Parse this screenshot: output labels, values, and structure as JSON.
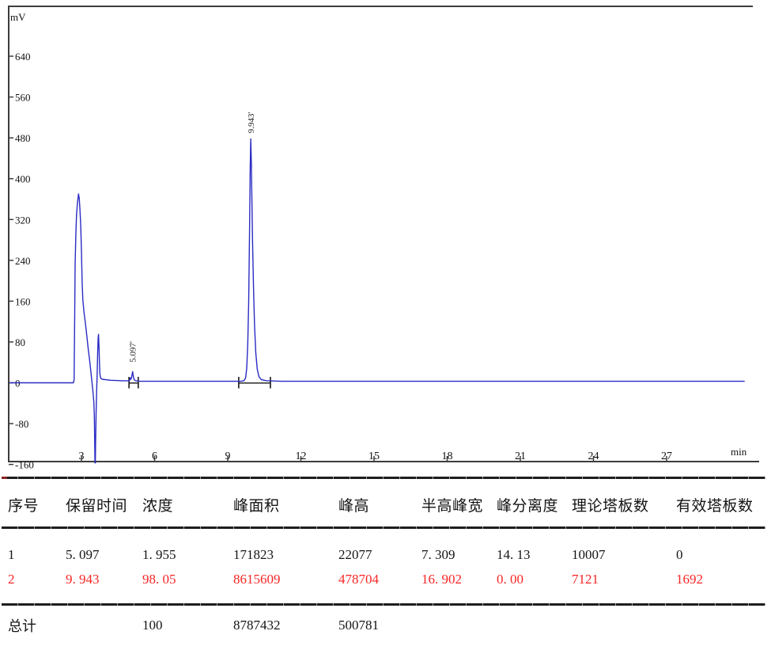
{
  "chart_data": {
    "type": "line",
    "title": "",
    "y_unit": "mV",
    "x_unit": "min",
    "x_ticks": [
      3,
      6,
      9,
      12,
      15,
      18,
      21,
      24,
      27
    ],
    "y_ticks": [
      640,
      560,
      480,
      400,
      320,
      240,
      160,
      80,
      0,
      -80,
      -160
    ],
    "xlim": [
      0,
      30.5
    ],
    "ylim": [
      -165,
      740
    ],
    "grid": false,
    "line_color": "#2b2bc4",
    "axis_color": "#3c3c3c",
    "peaks": [
      {
        "retention_time_min": 5.097,
        "apex_mv": 22,
        "label": "5.097'"
      },
      {
        "retention_time_min": 9.943,
        "apex_mv": 478,
        "label": "9.943'"
      }
    ],
    "peak_labels": [
      {
        "text": "5.097'",
        "min": 5.097,
        "mv": 40
      },
      {
        "text": "9.943'",
        "min": 9.943,
        "mv": 489
      }
    ],
    "integration_ticks_min": [
      4.95,
      5.33,
      9.45,
      10.75
    ],
    "integration_baselines_min": [
      [
        4.95,
        5.33
      ],
      [
        9.45,
        10.75
      ]
    ],
    "trace_min_mv": [
      [
        0.06,
        0
      ],
      [
        2.67,
        0
      ],
      [
        2.7,
        5
      ],
      [
        2.72,
        120
      ],
      [
        2.74,
        230
      ],
      [
        2.77,
        290
      ],
      [
        2.8,
        330
      ],
      [
        2.84,
        355
      ],
      [
        2.88,
        370
      ],
      [
        2.91,
        362
      ],
      [
        2.94,
        340
      ],
      [
        2.97,
        308
      ],
      [
        3.0,
        258
      ],
      [
        3.03,
        195
      ],
      [
        3.06,
        162
      ],
      [
        3.1,
        140
      ],
      [
        3.16,
        118
      ],
      [
        3.22,
        92
      ],
      [
        3.28,
        66
      ],
      [
        3.34,
        42
      ],
      [
        3.4,
        16
      ],
      [
        3.46,
        -12
      ],
      [
        3.51,
        -38
      ],
      [
        3.53,
        -65
      ],
      [
        3.545,
        -120
      ],
      [
        3.555,
        -157
      ],
      [
        3.57,
        -157
      ],
      [
        3.58,
        -115
      ],
      [
        3.6,
        -62
      ],
      [
        3.62,
        -22
      ],
      [
        3.645,
        18
      ],
      [
        3.665,
        58
      ],
      [
        3.685,
        88
      ],
      [
        3.7,
        95
      ],
      [
        3.72,
        72
      ],
      [
        3.74,
        38
      ],
      [
        3.76,
        16
      ],
      [
        3.79,
        9
      ],
      [
        3.85,
        7
      ],
      [
        4.2,
        5
      ],
      [
        4.7,
        4
      ],
      [
        4.95,
        4
      ],
      [
        4.99,
        6
      ],
      [
        5.01,
        10
      ],
      [
        5.03,
        7
      ],
      [
        5.06,
        11
      ],
      [
        5.097,
        22
      ],
      [
        5.13,
        12
      ],
      [
        5.16,
        6
      ],
      [
        5.22,
        4
      ],
      [
        5.4,
        3
      ],
      [
        9.2,
        3
      ],
      [
        9.55,
        3
      ],
      [
        9.66,
        4
      ],
      [
        9.73,
        9
      ],
      [
        9.78,
        28
      ],
      [
        9.82,
        75
      ],
      [
        9.86,
        160
      ],
      [
        9.895,
        300
      ],
      [
        9.92,
        420
      ],
      [
        9.943,
        478
      ],
      [
        9.965,
        435
      ],
      [
        9.99,
        365
      ],
      [
        10.02,
        275
      ],
      [
        10.06,
        180
      ],
      [
        10.1,
        112
      ],
      [
        10.15,
        58
      ],
      [
        10.21,
        27
      ],
      [
        10.28,
        12
      ],
      [
        10.38,
        6
      ],
      [
        10.6,
        4
      ],
      [
        11.2,
        3
      ],
      [
        30.2,
        3
      ]
    ]
  },
  "table": {
    "headers": [
      "序号",
      "保留时间",
      "浓度",
      "峰面积",
      "峰高",
      "半高峰宽",
      "峰分离度",
      "理论塔板数",
      "有效塔板数"
    ],
    "rows": [
      {
        "color": "#141414",
        "cells": [
          "1",
          "5. 097",
          "1. 955",
          "171823",
          "22077",
          "7. 309",
          "14. 13",
          "10007",
          "0"
        ]
      },
      {
        "color": "#f92525",
        "cells": [
          "2",
          "9. 943",
          "98. 05",
          "8615609",
          "478704",
          "16. 902",
          "0. 00",
          "7121",
          "1692"
        ]
      }
    ],
    "total": {
      "cells": [
        "总计",
        "",
        "100",
        "8787432",
        "500781",
        "",
        "",
        "",
        ""
      ]
    }
  }
}
